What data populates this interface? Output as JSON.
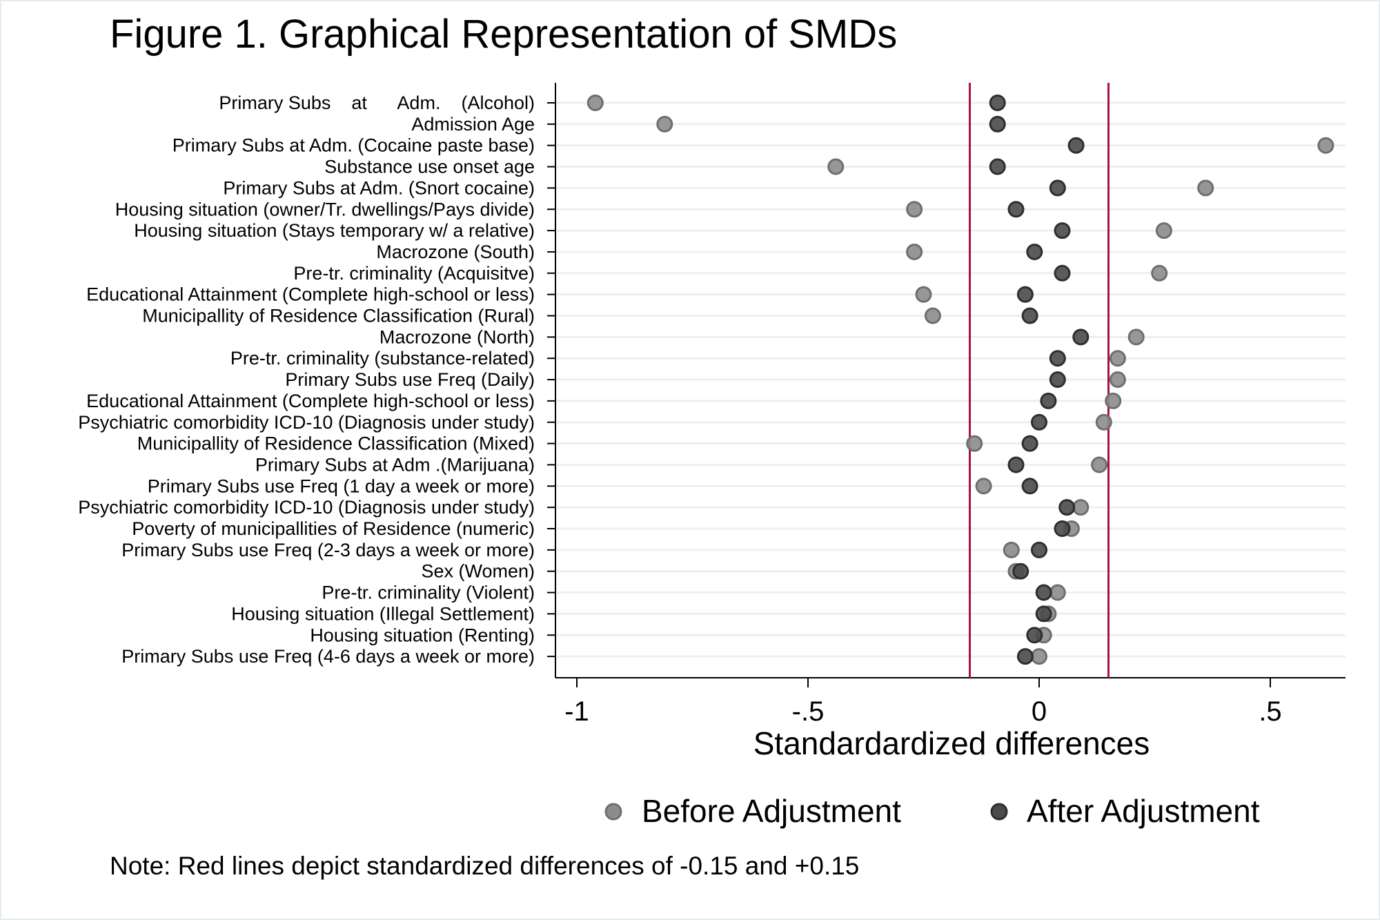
{
  "chart_data": {
    "type": "scatter",
    "title": "Figure 1. Graphical Representation of SMDs",
    "xlabel": "Standardardized differences",
    "note": "Note: Red lines depict standardized differences of -0.15 and +0.15",
    "xlim": [
      -1.05,
      0.66
    ],
    "xticks": [
      {
        "value": -1,
        "label": "-1"
      },
      {
        "value": -0.5,
        "label": "-.5"
      },
      {
        "value": 0,
        "label": "0"
      },
      {
        "value": 0.5,
        "label": ".5"
      }
    ],
    "reference_lines": [
      -0.15,
      0.15
    ],
    "reference_line_color": "#a8123e",
    "grid": true,
    "legend_position": "bottom",
    "categories": [
      "Primary Subs    at      Adm.    (Alcohol)",
      "Admission Age",
      "Primary Subs at Adm. (Cocaine paste base)",
      "Substance use onset age",
      "Primary Subs at Adm. (Snort cocaine)",
      "Housing situation (owner/Tr. dwellings/Pays divide)",
      "Housing situation (Stays temporary w/ a relative)",
      "Macrozone (South)",
      "Pre-tr. criminality (Acquisitve)",
      "Educational Attainment (Complete high-school or less)",
      "Municipallity of Residence Classification (Rural)",
      "Macrozone (North)",
      "Pre-tr. criminality (substance-related)",
      "Primary Subs use Freq (Daily)",
      "Educational Attainment (Complete high-school or less)",
      "Psychiatric comorbidity ICD-10 (Diagnosis under study)",
      "Municipallity of Residence Classification (Mixed)",
      "Primary Subs at Adm .(Marijuana)",
      "Primary Subs use Freq (1 day a week or more)",
      "Psychiatric comorbidity ICD-10 (Diagnosis under study)",
      "Poverty of municipallities of Residence (numeric)",
      "Primary Subs use Freq (2-3 days a week or more)",
      "Sex (Women)",
      "Pre-tr. criminality (Violent)",
      "Housing situation (Illegal Settlement)",
      "Housing situation (Renting)",
      "Primary Subs use Freq (4-6 days a week or more)"
    ],
    "series": [
      {
        "name": "Before Adjustment",
        "color": "#8c8c8c",
        "values": [
          -0.96,
          -0.81,
          0.62,
          -0.44,
          0.36,
          -0.27,
          0.27,
          -0.27,
          0.26,
          -0.25,
          -0.23,
          0.21,
          0.17,
          0.17,
          0.16,
          0.14,
          -0.14,
          0.13,
          -0.12,
          0.09,
          0.07,
          -0.06,
          -0.05,
          0.04,
          0.02,
          0.01,
          0.0
        ]
      },
      {
        "name": "After Adjustment",
        "color": "#4a4a4a",
        "values": [
          -0.09,
          -0.09,
          0.08,
          -0.09,
          0.04,
          -0.05,
          0.05,
          -0.01,
          0.05,
          -0.03,
          -0.02,
          0.09,
          0.04,
          0.04,
          0.02,
          0.0,
          -0.02,
          -0.05,
          -0.02,
          0.06,
          0.05,
          0.0,
          -0.04,
          0.01,
          0.01,
          -0.01,
          -0.03
        ]
      }
    ]
  }
}
